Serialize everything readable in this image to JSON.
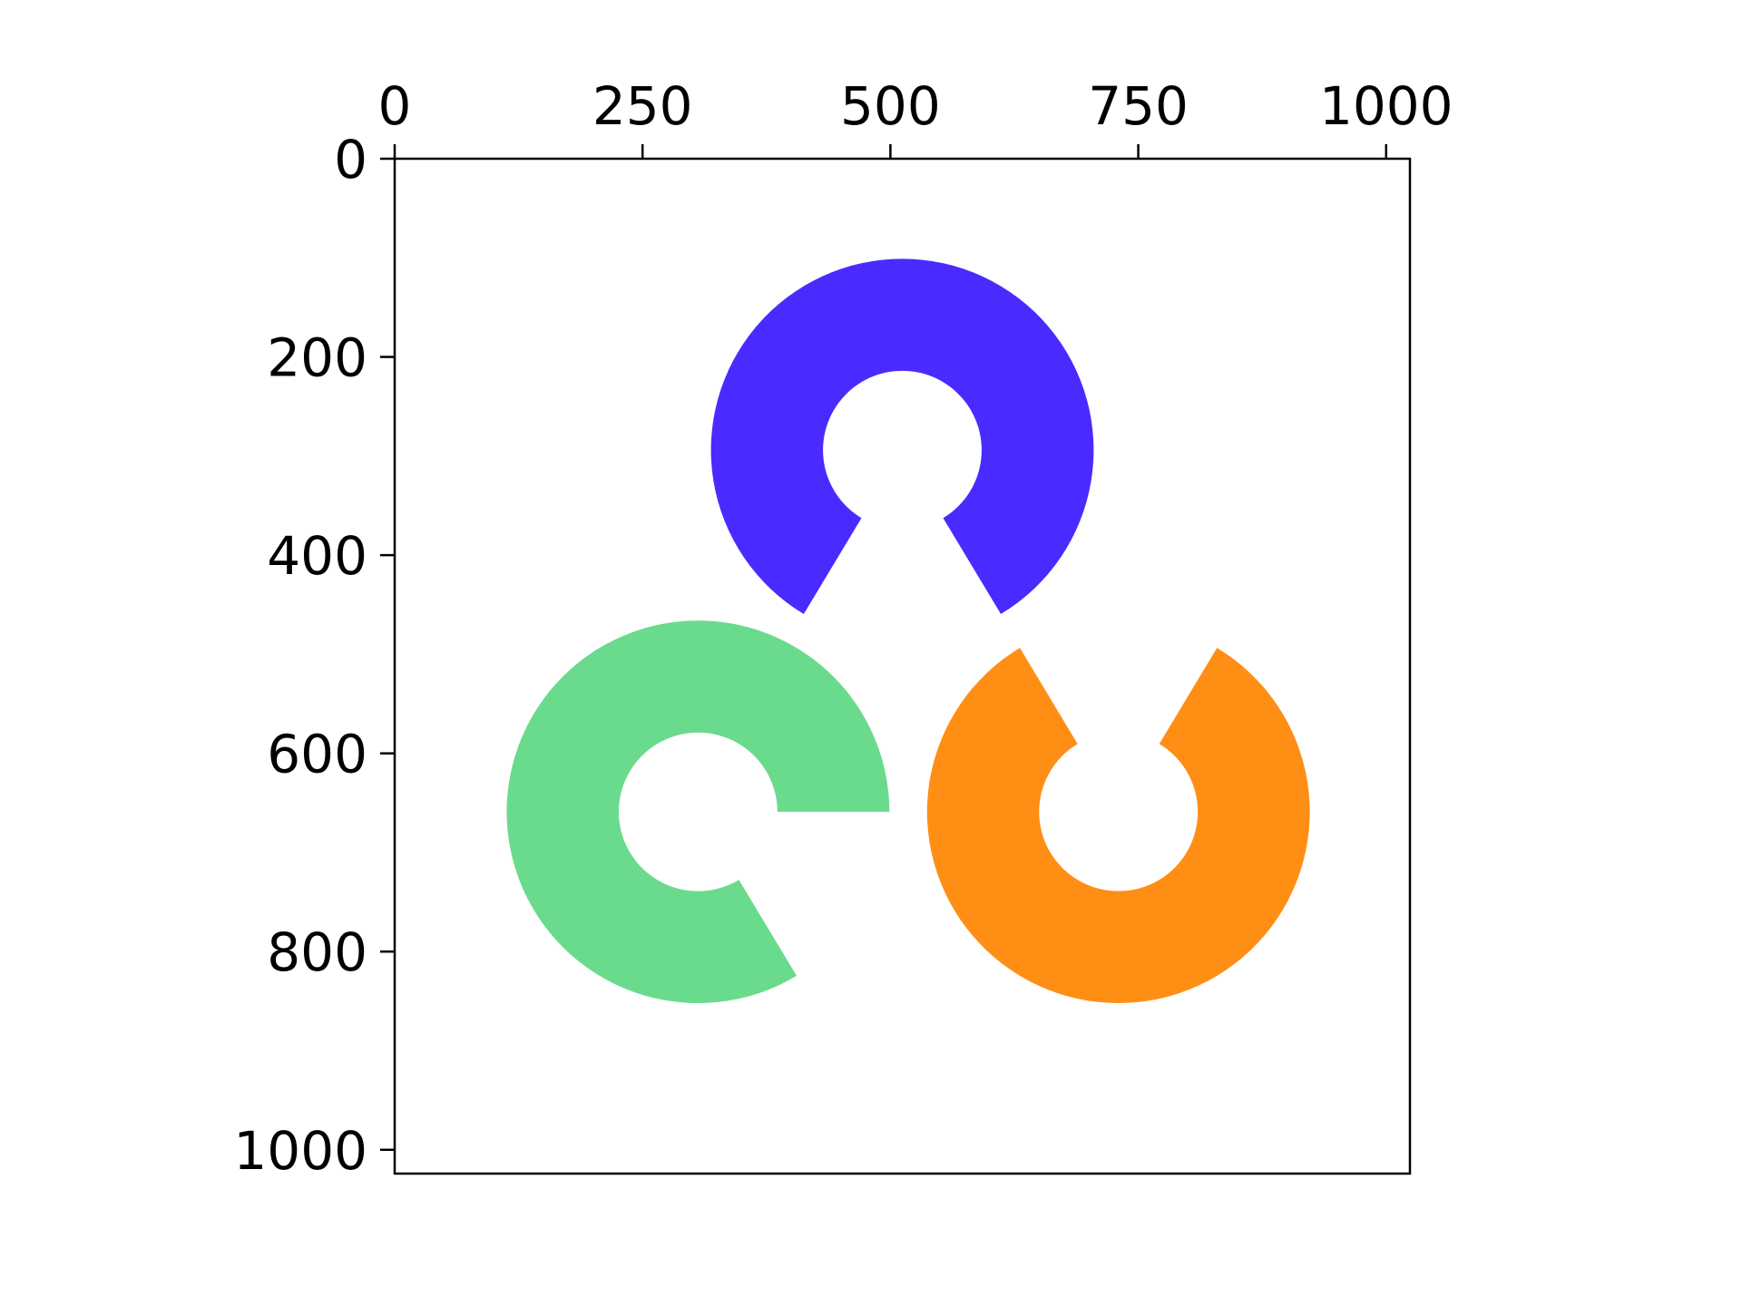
{
  "image": {
    "x_axis": {
      "position": "top",
      "range": [
        0,
        1024
      ],
      "ticks": [
        {
          "value": 0,
          "label": "0"
        },
        {
          "value": 250,
          "label": "250"
        },
        {
          "value": 500,
          "label": "500"
        },
        {
          "value": 750,
          "label": "750"
        },
        {
          "value": 1000,
          "label": "1000"
        }
      ]
    },
    "y_axis": {
      "position": "left",
      "inverted": true,
      "range": [
        0,
        1024
      ],
      "ticks": [
        {
          "value": 0,
          "label": "0"
        },
        {
          "value": 200,
          "label": "200"
        },
        {
          "value": 400,
          "label": "400"
        },
        {
          "value": 600,
          "label": "600"
        },
        {
          "value": 800,
          "label": "800"
        },
        {
          "value": 1000,
          "label": "1000"
        }
      ]
    },
    "background": "#ffffff",
    "shapes": [
      {
        "name": "blue-ring",
        "color": "#4a2bff",
        "center": [
          512,
          294
        ],
        "outer_radius": 193,
        "inner_radius": 80,
        "gap_center_deg": 90,
        "gap_width_deg": 62
      },
      {
        "name": "green-ring",
        "color": "#6adb8d",
        "center": [
          306,
          659
        ],
        "outer_radius": 193,
        "inner_radius": 80,
        "gap_from_deg": 0,
        "gap_to_deg": 59
      },
      {
        "name": "orange-ring",
        "color": "#ff8e15",
        "center": [
          730,
          659
        ],
        "outer_radius": 193,
        "inner_radius": 80,
        "gap_center_deg": 270,
        "gap_width_deg": 62
      }
    ]
  }
}
